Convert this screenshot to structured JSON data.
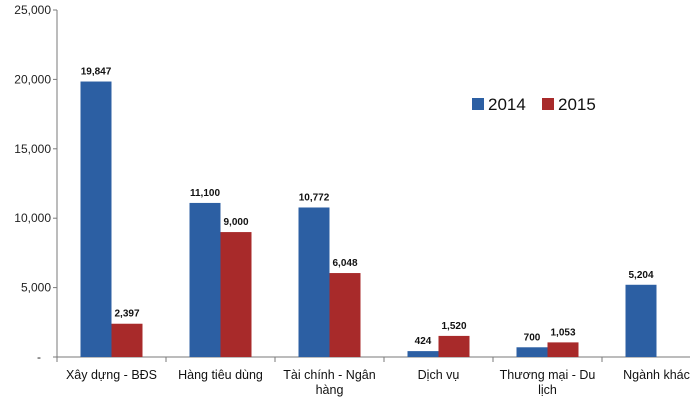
{
  "chart_data": {
    "type": "bar",
    "categories": [
      [
        "Xây dựng - BĐS"
      ],
      [
        "Hàng tiêu dùng"
      ],
      [
        "Tài chính - Ngân",
        "hàng"
      ],
      [
        "Dịch vụ"
      ],
      [
        "Thương  mại - Du",
        "lịch"
      ],
      [
        "Ngành khác"
      ]
    ],
    "series": [
      {
        "name": "2014",
        "color": "#2c5fa3",
        "values": [
          19847,
          11100,
          10772,
          424,
          700,
          5204
        ],
        "labels": [
          "19,847",
          "11,100",
          "10,772",
          "424",
          "700",
          "5,204"
        ]
      },
      {
        "name": "2015",
        "color": "#a82a2a",
        "values": [
          2397,
          9000,
          6048,
          1520,
          1053,
          null
        ],
        "labels": [
          "2,397",
          "9,000",
          "6,048",
          "1,520",
          "1,053",
          null
        ]
      }
    ],
    "ylim": [
      0,
      25000
    ],
    "yticks": [
      0,
      5000,
      10000,
      15000,
      20000,
      25000
    ],
    "ytick_labels": [
      "-",
      "5,000",
      "10,000",
      "15,000",
      "20,000",
      "25,000"
    ],
    "legend_position": "top-right",
    "grid": false,
    "title": "",
    "xlabel": "",
    "ylabel": ""
  }
}
